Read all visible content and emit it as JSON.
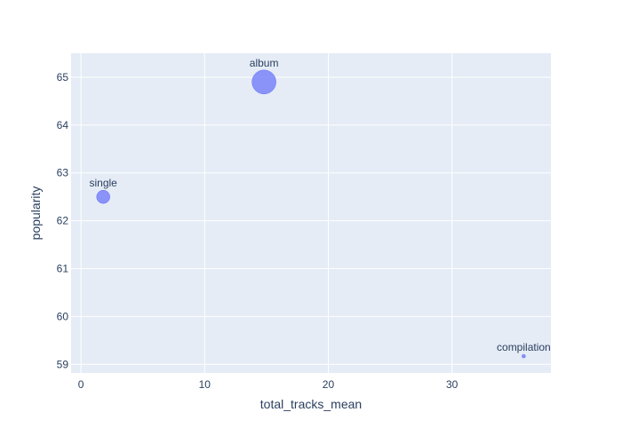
{
  "chart_data": {
    "type": "scatter",
    "title": "",
    "xlabel": "total_tracks_mean",
    "ylabel": "popularity",
    "xlim": [
      -0.8,
      38
    ],
    "ylim": [
      58.82,
      65.5
    ],
    "xticks": [
      0,
      10,
      20,
      30
    ],
    "yticks": [
      59,
      60,
      61,
      62,
      63,
      64,
      65
    ],
    "grid": true,
    "points": [
      {
        "label": "album",
        "x": 14.8,
        "y": 64.9,
        "size": 27
      },
      {
        "label": "single",
        "x": 1.8,
        "y": 62.5,
        "size": 15
      },
      {
        "label": "compilation",
        "x": 35.8,
        "y": 59.17,
        "size": 4
      }
    ],
    "colors": {
      "marker": "#636efa",
      "plot_bg": "#e5ecf6",
      "grid": "#ffffff",
      "text": "#2a3f5f"
    }
  }
}
